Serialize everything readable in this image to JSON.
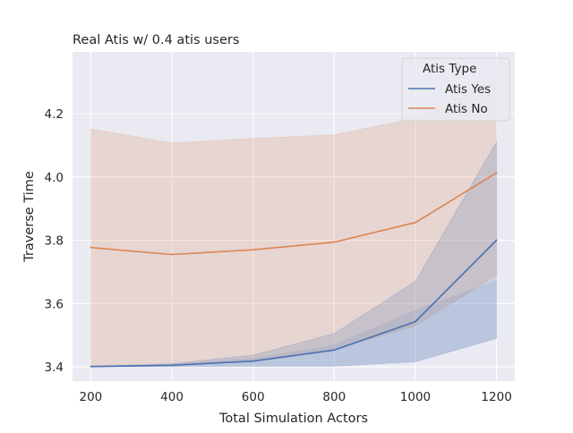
{
  "chart_data": {
    "type": "line",
    "title": "Real Atis w/ 0.4 atis users",
    "xlabel": "Total Simulation Actors",
    "ylabel": "Traverse Time",
    "xlim": [
      155,
      1245
    ],
    "ylim": [
      3.355,
      4.395
    ],
    "x": [
      200,
      400,
      600,
      800,
      1000,
      1200
    ],
    "xticks": [
      200,
      400,
      600,
      800,
      1000,
      1200
    ],
    "yticks": [
      3.4,
      3.6,
      3.8,
      4.0,
      4.2
    ],
    "ytick_labels": [
      "3.4",
      "3.6",
      "3.8",
      "4.0",
      "4.2"
    ],
    "grid": true,
    "legend": {
      "title": "Atis Type",
      "placement": "top-right"
    },
    "series": [
      {
        "name": "Atis Yes",
        "color": "#4c72b0",
        "values": [
          3.401,
          3.405,
          3.418,
          3.453,
          3.543,
          3.8
        ],
        "ci_upper": [
          3.402,
          3.41,
          3.437,
          3.505,
          3.67,
          4.11
        ],
        "ci_lower": [
          3.4,
          3.401,
          3.402,
          3.402,
          3.416,
          3.49
        ],
        "ci_upper_inner": [
          3.401,
          3.408,
          3.428,
          3.47,
          3.58,
          3.675
        ]
      },
      {
        "name": "Atis No",
        "color": "#dd8452",
        "values": [
          3.777,
          3.755,
          3.77,
          3.794,
          3.856,
          4.013
        ],
        "ci_upper": [
          4.152,
          4.107,
          4.122,
          4.133,
          4.185,
          4.305
        ],
        "ci_lower": [
          3.402,
          3.406,
          3.42,
          3.455,
          3.53,
          3.69
        ]
      }
    ]
  }
}
